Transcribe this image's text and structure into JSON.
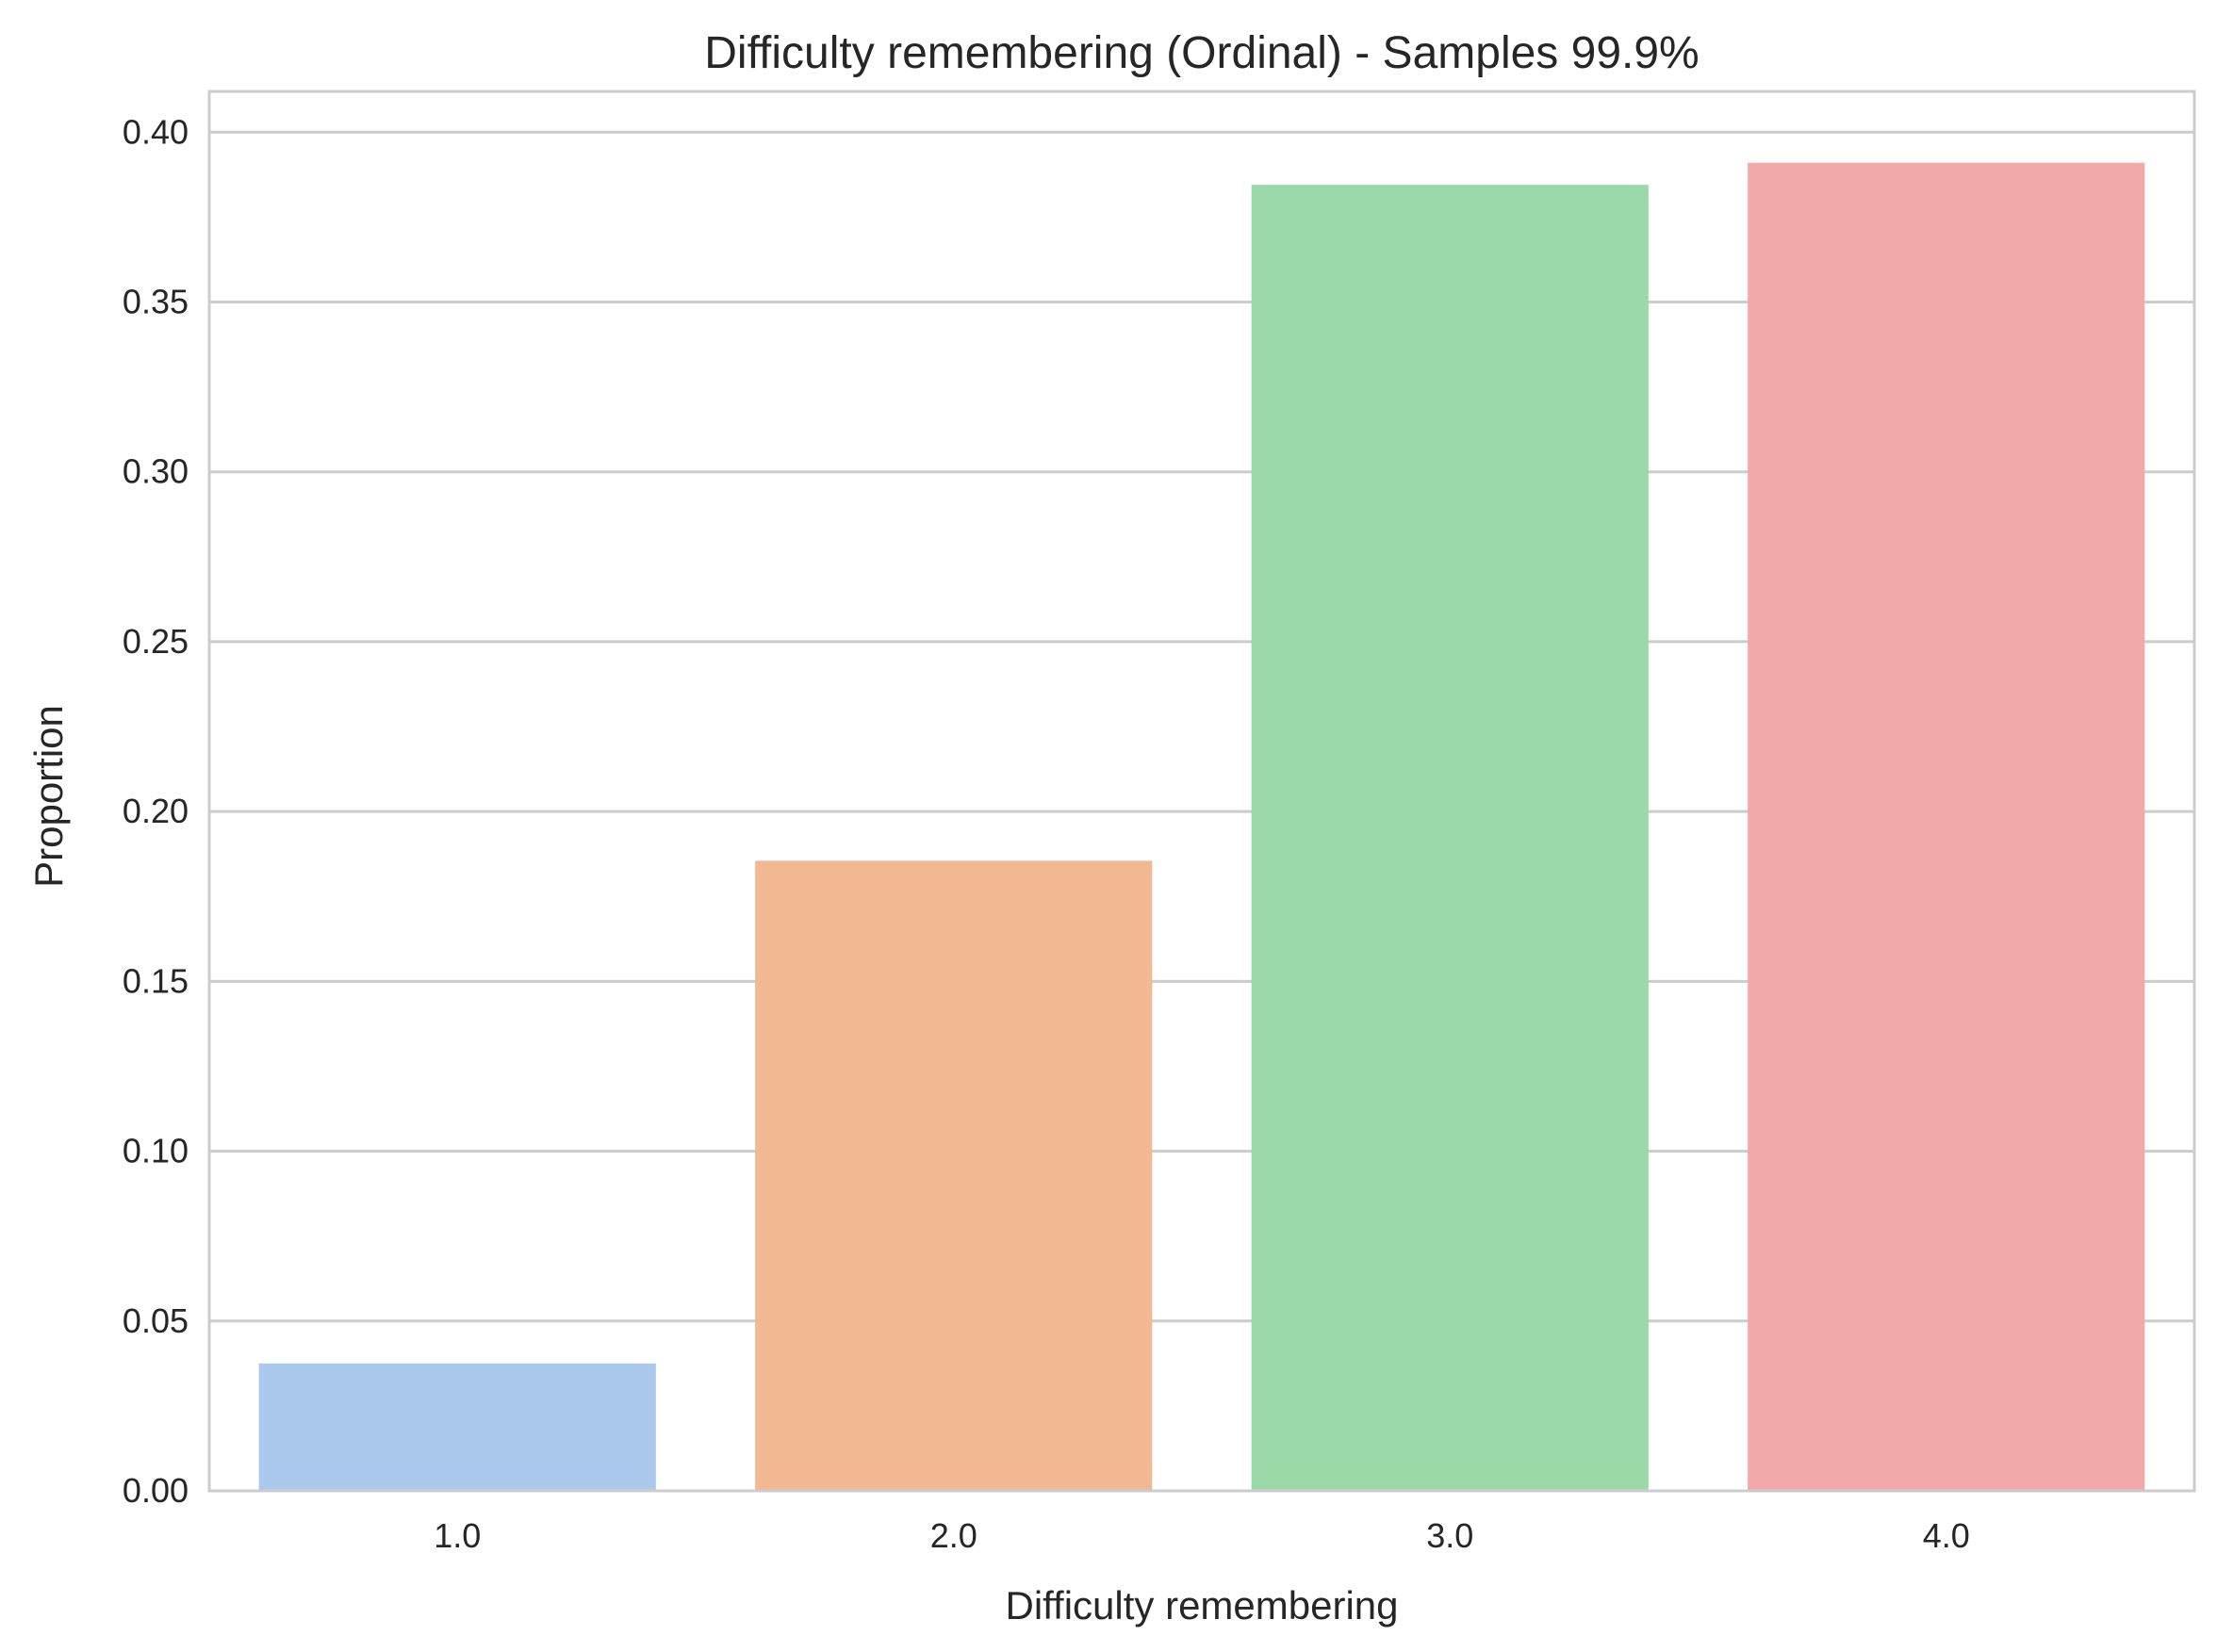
{
  "chart_data": {
    "type": "bar",
    "title": "Difficulty remembering (Ordinal) - Samples 99.9%",
    "xlabel": "Difficulty remembering",
    "ylabel": "Proportion",
    "categories": [
      "1.0",
      "2.0",
      "3.0",
      "4.0"
    ],
    "values": [
      0.0375,
      0.1855,
      0.3845,
      0.391
    ],
    "colors": [
      "#abc9ed",
      "#f1b891",
      "#9bdaa8",
      "#f2aaa8"
    ],
    "ylim": [
      0,
      0.412
    ],
    "yticks": [
      "0.00",
      "0.05",
      "0.10",
      "0.15",
      "0.20",
      "0.25",
      "0.30",
      "0.35",
      "0.40"
    ],
    "grid": true,
    "legend": "none"
  }
}
